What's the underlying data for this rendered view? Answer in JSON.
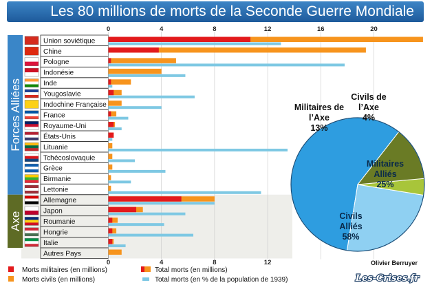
{
  "title": "Les 80 millions de morts de la Seconde Guerre Mondiale",
  "author": "Olivier Berruyer",
  "watermark": "Les-Crises.fr",
  "groups": [
    {
      "label": "Forces Alliées",
      "color": "#3a86c8"
    },
    {
      "label": "Axe",
      "color": "#5e6b25"
    }
  ],
  "colors": {
    "military": "#e31a1c",
    "civil": "#f7941d",
    "percent": "#7ec8e3",
    "title_bg": "#2a6faf",
    "axis_shading": "#eeeeea",
    "pie_civils_allies": "#2e9de0",
    "pie_militaires_allies": "#8fd0f2",
    "pie_civils_axe": "#a8c53a",
    "pie_militaires_axe": "#6a7b25"
  },
  "chart_data": [
    {
      "type": "bar",
      "orientation": "horizontal",
      "x_ticks_top": [
        "0",
        "4",
        "8",
        "12",
        "16",
        "20"
      ],
      "x_ticks_bottom": [
        "0",
        "4",
        "8",
        "12"
      ],
      "xlim": [
        0,
        23
      ],
      "categories": [
        "Union soviétique",
        "Chine",
        "Pologne",
        "Indonésie",
        "Inde",
        "Yougoslavie",
        "Indochine Française",
        "France",
        "Royaume-Uni",
        "États-Unis",
        "Lituanie",
        "Tchécoslovaquie",
        "Grèce",
        "Birmanie",
        "Lettonie",
        "Allemagne",
        "Japon",
        "Roumanie",
        "Hongrie",
        "Italie",
        "Autres Pays"
      ],
      "flags": [
        [
          "#d52b1e"
        ],
        [
          "#de2910"
        ],
        [
          "#ffffff",
          "#dc143c"
        ],
        [
          "#ce1126",
          "#ffffff"
        ],
        [
          "#ff9933",
          "#ffffff",
          "#138808"
        ],
        [
          "#1c3f94",
          "#ffffff",
          "#d52b1e"
        ],
        [
          "#fcd116"
        ],
        [
          "#0055a4",
          "#ffffff",
          "#ef4135"
        ],
        [
          "#012169",
          "#c8102e",
          "#ffffff"
        ],
        [
          "#b22234",
          "#ffffff",
          "#3c3b6e"
        ],
        [
          "#fdb913",
          "#006a44",
          "#c1272d"
        ],
        [
          "#ffffff",
          "#d7141a",
          "#11457e"
        ],
        [
          "#0d5eaf",
          "#ffffff",
          "#0d5eaf"
        ],
        [
          "#fecb00",
          "#34b233",
          "#ea2839"
        ],
        [
          "#9e3039",
          "#ffffff",
          "#9e3039"
        ],
        [
          "#d40000",
          "#ffffff",
          "#000000"
        ],
        [
          "#ffffff",
          "#bc002d"
        ],
        [
          "#002b7f",
          "#fcd116",
          "#ce1126"
        ],
        [
          "#ce2939",
          "#ffffff",
          "#477050"
        ],
        [
          "#009246",
          "#ffffff",
          "#ce2b37"
        ],
        [
          "#ffffff"
        ]
      ],
      "series": [
        {
          "name": "Morts militaires (en millions)",
          "values": [
            10.7,
            3.8,
            0.2,
            0,
            0.2,
            0.4,
            0,
            0.2,
            0.4,
            0.4,
            0,
            0,
            0,
            0,
            0,
            5.5,
            2.1,
            0.3,
            0.3,
            0.3,
            0
          ]
        },
        {
          "name": "Morts civils (en millions)",
          "values": [
            13.0,
            15.6,
            4.9,
            4.0,
            1.5,
            0.6,
            1.0,
            0.4,
            0.1,
            0,
            0.3,
            0.3,
            0.3,
            0.2,
            0.2,
            2.5,
            0.5,
            0.4,
            0.3,
            0.1,
            1.0
          ]
        },
        {
          "name": "Total morts (en % de la population de 1939)",
          "values": [
            13.0,
            0,
            17.8,
            5.8,
            0.3,
            6.5,
            4.0,
            1.5,
            1.0,
            0.3,
            13.5,
            2.0,
            4.3,
            1.7,
            11.5,
            8.0,
            5.8,
            4.2,
            6.4,
            1.3,
            0
          ]
        }
      ],
      "legend": [
        "Morts militaires (en millions)",
        "Total morts (en millions)",
        "Morts civils (en millions)",
        "Total morts (en % de la population de 1939)"
      ]
    },
    {
      "type": "pie",
      "slices": [
        {
          "label_top": "Civils Alliés",
          "label_bottom": "58%",
          "value": 58
        },
        {
          "label_top": "Militaires Alliés",
          "label_bottom": "25%",
          "value": 25
        },
        {
          "label_top": "Civils de l’Axe",
          "label_bottom": "4%",
          "value": 4
        },
        {
          "label_top": "Militaires de l’Axe",
          "label_bottom": "13%",
          "value": 13
        }
      ]
    }
  ]
}
